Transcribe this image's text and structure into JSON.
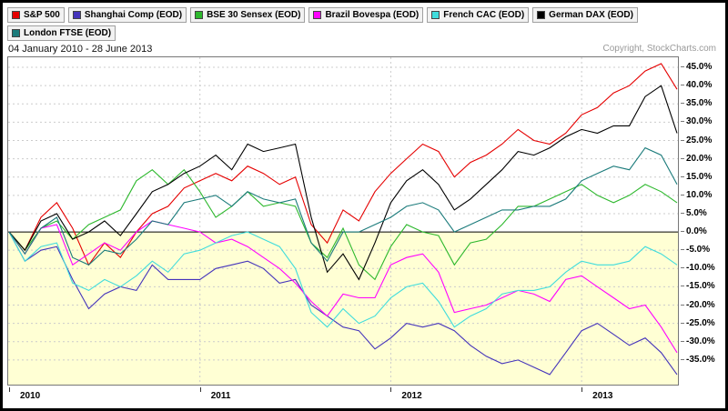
{
  "header": {
    "date_range": "04 January 2010 - 28 June 2013",
    "copyright": "Copyright, StockCharts.com"
  },
  "chart_data": {
    "type": "line",
    "title": "",
    "xlabel": "",
    "ylabel": "",
    "legend_position": "top",
    "grid": "dashed",
    "background_above_zero": "#ffffff",
    "background_below_zero": "#ffffd4",
    "grid_color": "#cccccc",
    "zero_line_color": "#000000",
    "xlim": [
      2010.0,
      2013.5
    ],
    "ylim": [
      -41.5,
      47.5
    ],
    "x": [
      2010.0,
      2010.083,
      2010.167,
      2010.25,
      2010.333,
      2010.417,
      2010.5,
      2010.583,
      2010.667,
      2010.75,
      2010.833,
      2010.917,
      2011.0,
      2011.083,
      2011.167,
      2011.25,
      2011.333,
      2011.417,
      2011.5,
      2011.583,
      2011.667,
      2011.75,
      2011.833,
      2011.917,
      2012.0,
      2012.083,
      2012.167,
      2012.25,
      2012.333,
      2012.417,
      2012.5,
      2012.583,
      2012.667,
      2012.75,
      2012.833,
      2012.917,
      2013.0,
      2013.083,
      2013.167,
      2013.25,
      2013.333,
      2013.417,
      2013.5
    ],
    "series": [
      {
        "name": "S&P 500",
        "color": "#e50000",
        "values": [
          0,
          -5,
          4,
          8,
          1,
          -9,
          -3,
          -7,
          0,
          5,
          7,
          12,
          14,
          16,
          14,
          18,
          16,
          13,
          15,
          2,
          -3,
          6,
          3,
          11,
          16,
          20,
          24,
          22,
          15,
          19,
          21,
          24,
          28,
          25,
          24,
          27,
          32,
          34,
          38,
          40,
          44,
          46,
          39
        ]
      },
      {
        "name": "Shanghai Comp (EOD)",
        "color": "#4433bb",
        "values": [
          0,
          -8,
          -5,
          -4,
          -13,
          -21,
          -17,
          -15,
          -16,
          -9,
          -13,
          -13,
          -13,
          -10,
          -9,
          -8,
          -10,
          -14,
          -13,
          -20,
          -23,
          -26,
          -27,
          -32,
          -29,
          -25,
          -26,
          -25,
          -27,
          -31,
          -34,
          -36,
          -35,
          -37,
          -39,
          -33,
          -27,
          -25,
          -28,
          -31,
          -29,
          -33,
          -39
        ]
      },
      {
        "name": "BSE 30 Sensex (EOD)",
        "color": "#2db82d",
        "values": [
          0,
          -5,
          1,
          3,
          -2,
          2,
          4,
          6,
          14,
          17,
          13,
          17,
          11,
          4,
          7,
          11,
          7,
          8,
          7,
          -3,
          -7,
          1,
          -9,
          -13,
          -4,
          2,
          0,
          -1,
          -9,
          -3,
          -2,
          2,
          7,
          7,
          9,
          11,
          13,
          10,
          8,
          10,
          13,
          11,
          8
        ]
      },
      {
        "name": "Brazil Bovespa (EOD)",
        "color": "#ff00ff",
        "values": [
          0,
          -6,
          1,
          2,
          -9,
          -6,
          -3,
          -5,
          0,
          3,
          2,
          1,
          0,
          -3,
          -2,
          -4,
          -7,
          -10,
          -14,
          -19,
          -23,
          -17,
          -18,
          -18,
          -9,
          -7,
          -6,
          -11,
          -22,
          -21,
          -20,
          -18,
          -16,
          -17,
          -19,
          -13,
          -12,
          -15,
          -18,
          -21,
          -20,
          -26,
          -33
        ]
      },
      {
        "name": "French CAC (EOD)",
        "color": "#3fdcdc",
        "values": [
          0,
          -8,
          -4,
          -3,
          -14,
          -16,
          -13,
          -15,
          -12,
          -8,
          -11,
          -6,
          -5,
          -3,
          -1,
          0,
          -2,
          -4,
          -10,
          -22,
          -26,
          -21,
          -25,
          -23,
          -18,
          -15,
          -14,
          -19,
          -26,
          -23,
          -21,
          -17,
          -16,
          -16,
          -15,
          -11,
          -8,
          -9,
          -9,
          -8,
          -4,
          -6,
          -9
        ]
      },
      {
        "name": "German DAX (EOD)",
        "color": "#000000",
        "values": [
          0,
          -5,
          3,
          5,
          -2,
          0,
          3,
          -1,
          5,
          11,
          13,
          16,
          18,
          21,
          17,
          24,
          22,
          23,
          24,
          4,
          -11,
          -6,
          -13,
          -3,
          8,
          14,
          17,
          13,
          6,
          9,
          13,
          17,
          22,
          21,
          23,
          26,
          28,
          27,
          29,
          29,
          37,
          40,
          27
        ]
      },
      {
        "name": "London FTSE (EOD)",
        "color": "#1b7b7b",
        "values": [
          0,
          -6,
          1,
          4,
          -7,
          -9,
          -5,
          -6,
          -2,
          3,
          2,
          8,
          9,
          10,
          7,
          11,
          9,
          8,
          9,
          -3,
          -8,
          0,
          0,
          2,
          4,
          7,
          8,
          6,
          0,
          2,
          4,
          6,
          6,
          7,
          7,
          9,
          14,
          16,
          18,
          17,
          23,
          21,
          13
        ]
      }
    ],
    "y_ticks": [
      {
        "value": 45,
        "label": "45.0%"
      },
      {
        "value": 40,
        "label": "40.0%"
      },
      {
        "value": 35,
        "label": "35.0%"
      },
      {
        "value": 30,
        "label": "30.0%"
      },
      {
        "value": 25,
        "label": "25.0%"
      },
      {
        "value": 20,
        "label": "20.0%"
      },
      {
        "value": 15,
        "label": "15.0%"
      },
      {
        "value": 10,
        "label": "10.0%"
      },
      {
        "value": 5,
        "label": "5.0%"
      },
      {
        "value": 0,
        "label": "0.0%"
      },
      {
        "value": -5,
        "label": "-5.0%"
      },
      {
        "value": -10,
        "label": "-10.0%"
      },
      {
        "value": -15,
        "label": "-15.0%"
      },
      {
        "value": -20,
        "label": "-20.0%"
      },
      {
        "value": -25,
        "label": "-25.0%"
      },
      {
        "value": -30,
        "label": "-30.0%"
      },
      {
        "value": -35,
        "label": "-35.0%"
      }
    ],
    "x_ticks": [
      {
        "value": 2010,
        "label": "2010"
      },
      {
        "value": 2011,
        "label": "2011"
      },
      {
        "value": 2012,
        "label": "2012"
      },
      {
        "value": 2013,
        "label": "2013"
      }
    ]
  }
}
